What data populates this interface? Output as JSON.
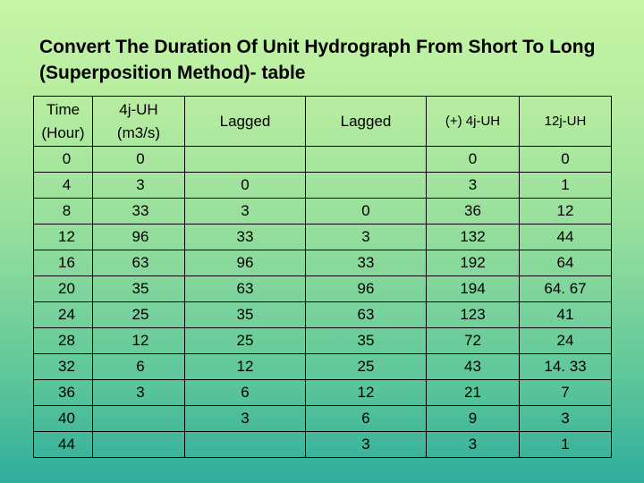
{
  "title": "Convert The Duration Of Unit Hydrograph From Short To Long (Superposition Method)- table",
  "table": {
    "headers": {
      "time_line1": "Time",
      "time_line2": "(Hour)",
      "uh_line1": "4j-UH",
      "uh_line2": "(m3/s)",
      "lagged1": "Lagged",
      "lagged2": "Lagged",
      "sum": "(+) 4j-UH",
      "result": "12j-UH"
    },
    "rows": [
      [
        "0",
        "0",
        "",
        "",
        "0",
        "0"
      ],
      [
        "4",
        "3",
        "0",
        "",
        "3",
        "1"
      ],
      [
        "8",
        "33",
        "3",
        "0",
        "36",
        "12"
      ],
      [
        "12",
        "96",
        "33",
        "3",
        "132",
        "44"
      ],
      [
        "16",
        "63",
        "96",
        "33",
        "192",
        "64"
      ],
      [
        "20",
        "35",
        "63",
        "96",
        "194",
        "64. 67"
      ],
      [
        "24",
        "25",
        "35",
        "63",
        "123",
        "41"
      ],
      [
        "28",
        "12",
        "25",
        "35",
        "72",
        "24"
      ],
      [
        "32",
        "6",
        "12",
        "25",
        "43",
        "14. 33"
      ],
      [
        "36",
        "3",
        "6",
        "12",
        "21",
        "7"
      ],
      [
        "40",
        "",
        "3",
        "6",
        "9",
        "3"
      ],
      [
        "44",
        "",
        "",
        "3",
        "3",
        "1"
      ]
    ]
  }
}
